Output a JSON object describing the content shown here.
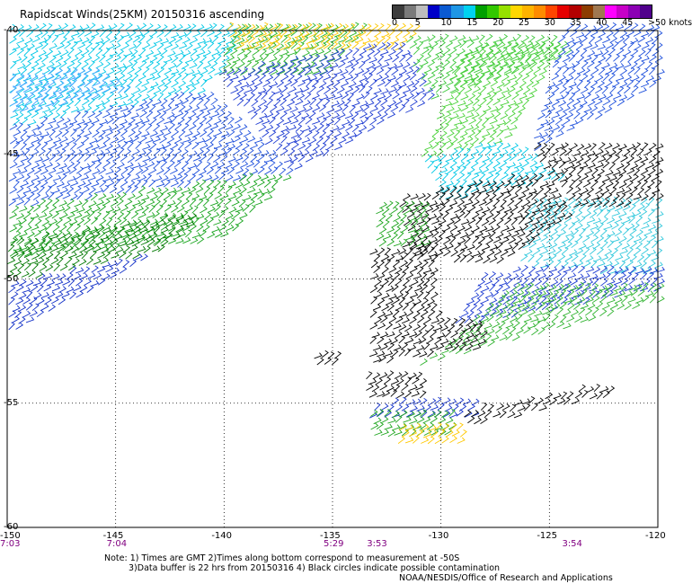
{
  "title": "Rapidscat Winds(25KM) 20150316 ascending",
  "legend": {
    "labels": [
      "0",
      "5",
      "10",
      "15",
      "20",
      "25",
      "30",
      "35",
      "40",
      "45",
      ">50 knots"
    ],
    "colors": [
      "#3c3c3c",
      "#7a7a7a",
      "#bdbdbd",
      "#0000c8",
      "#0a5ad2",
      "#1e96e6",
      "#00d2f0",
      "#00a000",
      "#32c800",
      "#96e100",
      "#ffd700",
      "#ffb400",
      "#ff8c00",
      "#ff4600",
      "#e60000",
      "#b40000",
      "#8c3c00",
      "#a07850",
      "#ff00ff",
      "#c800c8",
      "#8c00b4",
      "#50008c"
    ]
  },
  "map": {
    "lon_range": [
      -150,
      -120
    ],
    "lat_range": [
      -60,
      -40
    ],
    "lon_ticks": [
      "-150",
      "-145",
      "-140",
      "-135",
      "-130",
      "-125",
      "-120"
    ],
    "lat_ticks": [
      "-40",
      "-45",
      "-50",
      "-55",
      "-60"
    ],
    "time_labels": [
      {
        "text": "7:03",
        "lon": -150
      },
      {
        "text": "7:04",
        "lon": -145
      },
      {
        "text": "5:29",
        "lon": -135
      },
      {
        "text": "3:53",
        "lon": -133
      },
      {
        "text": "3:54",
        "lon": -124
      }
    ]
  },
  "notes": [
    "Note: 1) Times are GMT 2)Times along bottom correspond to measurement at -50S",
    "3)Data buffer is 22 hrs from 20150316 4) Black circles indicate possible contamination",
    "NOAA/NESDIS/Office of Research and Applications"
  ],
  "wind_regions": [
    {
      "name": "west-lightblue",
      "poly": [
        [
          -150,
          -40
        ],
        [
          -139,
          -40
        ],
        [
          -141,
          -42.5
        ],
        [
          -150,
          -44
        ]
      ],
      "color": "#00c8e6"
    },
    {
      "name": "west-blue",
      "poly": [
        [
          -150,
          -44
        ],
        [
          -141,
          -42.5
        ],
        [
          -137,
          -45.8
        ],
        [
          -150,
          -47.2
        ]
      ],
      "color": "#1e50dc"
    },
    {
      "name": "west-mixed",
      "poly": [
        [
          -150,
          -42
        ],
        [
          -146.5,
          -41.5
        ],
        [
          -144.5,
          -42.5
        ],
        [
          -150,
          -43.5
        ]
      ],
      "color": "#4ba6ff"
    },
    {
      "name": "west-green",
      "poly": [
        [
          -150,
          -47.2
        ],
        [
          -137,
          -45.8
        ],
        [
          -140,
          -48.5
        ],
        [
          -150,
          -49.2
        ]
      ],
      "color": "#18a51e"
    },
    {
      "name": "west-darkgreen",
      "poly": [
        [
          -150,
          -48.6
        ],
        [
          -141,
          -47.4
        ],
        [
          -143,
          -49
        ],
        [
          -150,
          -50.2
        ]
      ],
      "color": "#007800"
    },
    {
      "name": "west-blue-south",
      "poly": [
        [
          -150,
          -50.2
        ],
        [
          -143,
          -49
        ],
        [
          -150,
          -52.3
        ]
      ],
      "color": "#1432c8"
    },
    {
      "name": "north-green",
      "poly": [
        [
          -139.5,
          -40
        ],
        [
          -133.5,
          -40
        ],
        [
          -135.5,
          -41.8
        ],
        [
          -140.5,
          -41.8
        ]
      ],
      "color": "#28b428"
    },
    {
      "name": "north-yellow",
      "poly": [
        [
          -140,
          -40
        ],
        [
          -131,
          -40
        ],
        [
          -132,
          -40.8
        ],
        [
          -139.5,
          -40.8
        ]
      ],
      "color": "#ffc800"
    },
    {
      "name": "central-blue",
      "poly": [
        [
          -140.5,
          -41.8
        ],
        [
          -132,
          -40.5
        ],
        [
          -130.5,
          -42.8
        ],
        [
          -137,
          -45.8
        ]
      ],
      "color": "#1e3cd2"
    },
    {
      "name": "central-green",
      "poly": [
        [
          -132,
          -40.2
        ],
        [
          -125,
          -40.3
        ],
        [
          -124,
          -41
        ],
        [
          -130.5,
          -42.8
        ]
      ],
      "color": "#3cc83c"
    },
    {
      "name": "east-blue",
      "poly": [
        [
          -124.5,
          -40
        ],
        [
          -120,
          -40
        ],
        [
          -120,
          -42.2
        ],
        [
          -126,
          -45
        ]
      ],
      "color": "#1e50dc"
    },
    {
      "name": "east-green-band",
      "poly": [
        [
          -129,
          -40.8
        ],
        [
          -124.5,
          -40.5
        ],
        [
          -127,
          -44.5
        ],
        [
          -131,
          -45.2
        ]
      ],
      "color": "#4cd23c"
    },
    {
      "name": "east-cyan",
      "poly": [
        [
          -131,
          -45.2
        ],
        [
          -127,
          -44.5
        ],
        [
          -124.5,
          -46
        ],
        [
          -130,
          -47
        ]
      ],
      "color": "#00c8e6"
    },
    {
      "name": "east-cyan-south",
      "poly": [
        [
          -126,
          -47
        ],
        [
          -120,
          -47
        ],
        [
          -120,
          -50
        ],
        [
          -126.5,
          -49.5
        ]
      ],
      "color": "#32c8dc"
    },
    {
      "name": "east-blue-mid",
      "poly": [
        [
          -128,
          -49.8
        ],
        [
          -120,
          -49.5
        ],
        [
          -120,
          -50.5
        ],
        [
          -129.5,
          -52
        ]
      ],
      "color": "#1e3cd2"
    },
    {
      "name": "east-green-south",
      "poly": [
        [
          -126.5,
          -50.2
        ],
        [
          -120,
          -50.3
        ],
        [
          -120,
          -51
        ],
        [
          -131,
          -53.5
        ]
      ],
      "color": "#32b432"
    },
    {
      "name": "cyclone-black",
      "poly": [
        [
          -132,
          -46.8
        ],
        [
          -125.5,
          -45.8
        ],
        [
          -124,
          -47.5
        ],
        [
          -127.5,
          -49.5
        ],
        [
          -131.5,
          -49.2
        ]
      ],
      "color": "#000000"
    },
    {
      "name": "cyclone-black-north",
      "poly": [
        [
          -126,
          -44.8
        ],
        [
          -120,
          -44.8
        ],
        [
          -120,
          -47
        ],
        [
          -124,
          -47.2
        ]
      ],
      "color": "#000000"
    },
    {
      "name": "swath-green-box",
      "poly": [
        [
          -133,
          -47
        ],
        [
          -130.8,
          -46.9
        ],
        [
          -130.8,
          -48.8
        ],
        [
          -133,
          -48.8
        ]
      ],
      "color": "#1ea51e"
    },
    {
      "name": "swath-black-mid",
      "poly": [
        [
          -133.3,
          -49
        ],
        [
          -130.5,
          -48.5
        ],
        [
          -130.2,
          -51.8
        ],
        [
          -133.3,
          -52.2
        ]
      ],
      "color": "#000000"
    },
    {
      "name": "swath-black-south",
      "poly": [
        [
          -133.4,
          -52.3
        ],
        [
          -128.5,
          -51.6
        ],
        [
          -128,
          -52.8
        ],
        [
          -133.4,
          -53.5
        ]
      ],
      "color": "#000000"
    },
    {
      "name": "swath-black-low",
      "poly": [
        [
          -133.5,
          -54
        ],
        [
          -131,
          -54
        ],
        [
          -131,
          -55
        ],
        [
          -133.5,
          -55
        ]
      ],
      "color": "#000000"
    },
    {
      "name": "south-blue",
      "poly": [
        [
          -133.3,
          -55.1
        ],
        [
          -128.5,
          -54.8
        ],
        [
          -128.5,
          -55.6
        ],
        [
          -133.3,
          -55.8
        ]
      ],
      "color": "#1432c8"
    },
    {
      "name": "south-green",
      "poly": [
        [
          -133.3,
          -55.5
        ],
        [
          -129.5,
          -55.3
        ],
        [
          -129.5,
          -56.3
        ],
        [
          -133.3,
          -56.5
        ]
      ],
      "color": "#1ea51e"
    },
    {
      "name": "south-yellow",
      "poly": [
        [
          -132,
          -56.1
        ],
        [
          -129,
          -56.1
        ],
        [
          -129,
          -56.7
        ],
        [
          -132,
          -56.7
        ]
      ],
      "color": "#ffc800"
    },
    {
      "name": "south-black-band",
      "poly": [
        [
          -129,
          -55.4
        ],
        [
          -122.3,
          -54.3
        ],
        [
          -122.3,
          -54.8
        ],
        [
          -129,
          -56
        ]
      ],
      "color": "#000000"
    },
    {
      "name": "small-black-west",
      "poly": [
        [
          -136,
          -53.2
        ],
        [
          -134.8,
          -53.2
        ],
        [
          -134.8,
          -53.6
        ],
        [
          -136,
          -53.6
        ]
      ],
      "color": "#000000"
    }
  ]
}
